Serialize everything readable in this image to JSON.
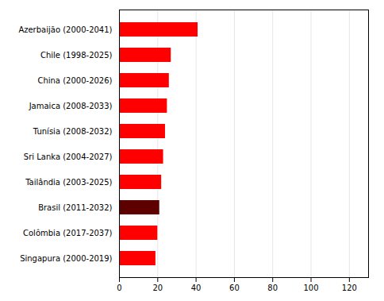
{
  "chart_data": {
    "type": "bar",
    "orientation": "horizontal",
    "categories": [
      "Singapura (2000-2019)",
      "Colômbia (2017-2037)",
      "Brasil (2011-2032)",
      "Tailândia (2003-2025)",
      "Sri Lanka (2004-2027)",
      "Tunísia (2008-2032)",
      "Jamaica (2008-2033)",
      "China (2000-2026)",
      "Chile (1998-2025)",
      "Azerbaijão (2000-2041)"
    ],
    "values": [
      19,
      20,
      21,
      22,
      23,
      24,
      25,
      26,
      27,
      41
    ],
    "colors": [
      "#ff0000",
      "#ff0000",
      "#5c0000",
      "#ff0000",
      "#ff0000",
      "#ff0000",
      "#ff0000",
      "#ff0000",
      "#ff0000",
      "#ff0000"
    ],
    "xlim": [
      0,
      130
    ],
    "xticks": [
      0,
      20,
      40,
      60,
      80,
      100,
      120
    ],
    "grid": true
  }
}
